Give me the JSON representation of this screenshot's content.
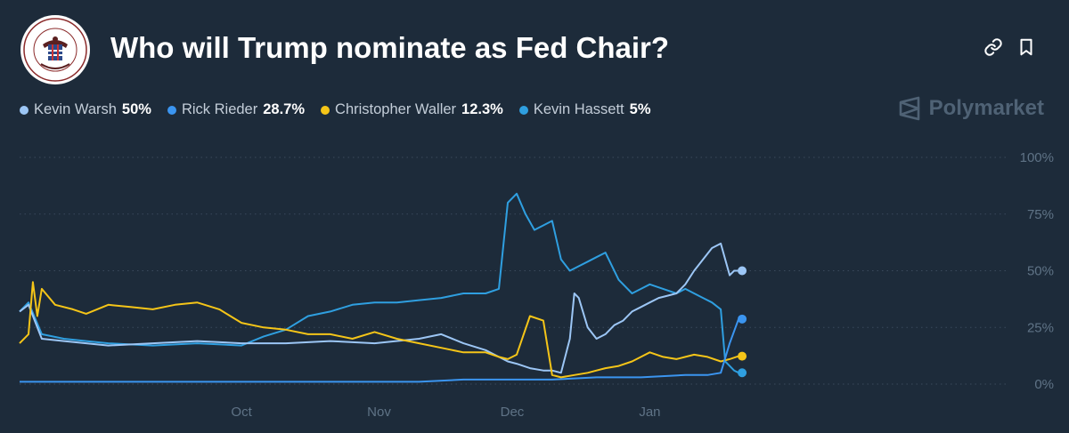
{
  "header": {
    "title": "Who will Trump nominate as Fed Chair?",
    "logo_icon": "federal-reserve-seal-icon",
    "link_icon": "link-icon",
    "bookmark_icon": "bookmark-icon"
  },
  "brand": {
    "name": "Polymarket",
    "icon": "polymarket-logo-icon"
  },
  "legend": [
    {
      "name": "Kevin Warsh",
      "value": "50%",
      "color": "#9cc6f5"
    },
    {
      "name": "Rick Rieder",
      "value": "28.7%",
      "color": "#3b95f0"
    },
    {
      "name": "Christopher Waller",
      "value": "12.3%",
      "color": "#f5c518"
    },
    {
      "name": "Kevin Hassett",
      "value": "5%",
      "color": "#2f9fe0"
    }
  ],
  "chart_data": {
    "type": "line",
    "x_ticks": [
      "Oct",
      "Nov",
      "Dec",
      "Jan"
    ],
    "y_ticks": [
      "0%",
      "25%",
      "50%",
      "75%",
      "100%"
    ],
    "ylim": [
      0,
      100
    ],
    "grid": true,
    "legend_position": "top-left",
    "x_range": [
      -50,
      170
    ],
    "x_tick_positions": [
      0,
      31,
      61,
      92
    ],
    "series": [
      {
        "name": "Kevin Warsh",
        "color": "#9cc6f5",
        "x": [
          -50,
          -48,
          -45,
          -40,
          -35,
          -30,
          -20,
          -10,
          0,
          10,
          20,
          30,
          40,
          45,
          50,
          55,
          58,
          60,
          62,
          65,
          68,
          70,
          72,
          74,
          75,
          76,
          78,
          80,
          82,
          84,
          86,
          88,
          90,
          92,
          94,
          96,
          98,
          100,
          102,
          104,
          106,
          108,
          109,
          110,
          111,
          112
        ],
        "values": [
          32,
          35,
          20,
          19,
          18,
          17,
          18,
          19,
          18,
          18,
          19,
          18,
          20,
          22,
          18,
          15,
          12,
          10,
          9,
          7,
          6,
          6,
          5,
          20,
          40,
          38,
          25,
          20,
          22,
          26,
          28,
          32,
          34,
          36,
          38,
          39,
          40,
          44,
          50,
          55,
          60,
          62,
          55,
          48,
          50,
          50
        ]
      },
      {
        "name": "Rick Rieder",
        "color": "#3b95f0",
        "x": [
          -50,
          -40,
          -30,
          -20,
          -10,
          0,
          5,
          10,
          15,
          20,
          30,
          40,
          50,
          60,
          70,
          80,
          90,
          100,
          105,
          108,
          110,
          112
        ],
        "values": [
          1,
          1,
          1,
          1,
          1,
          1,
          1,
          1,
          1,
          1,
          1,
          1,
          2,
          2,
          2,
          3,
          3,
          4,
          4,
          5,
          18,
          28.7
        ]
      },
      {
        "name": "Christopher Waller",
        "color": "#f5c518",
        "x": [
          -50,
          -48,
          -47,
          -46,
          -45,
          -42,
          -38,
          -35,
          -30,
          -25,
          -20,
          -15,
          -10,
          -5,
          0,
          5,
          10,
          15,
          20,
          25,
          30,
          35,
          40,
          45,
          50,
          55,
          58,
          60,
          62,
          65,
          68,
          70,
          72,
          75,
          78,
          80,
          82,
          85,
          88,
          90,
          92,
          95,
          98,
          100,
          102,
          105,
          108,
          110,
          112
        ],
        "values": [
          18,
          22,
          45,
          30,
          42,
          35,
          33,
          31,
          35,
          34,
          33,
          35,
          36,
          33,
          27,
          25,
          24,
          22,
          22,
          20,
          23,
          20,
          18,
          16,
          14,
          14,
          12,
          11,
          13,
          30,
          28,
          4,
          3,
          4,
          5,
          6,
          7,
          8,
          10,
          12,
          14,
          12,
          11,
          12,
          13,
          12,
          10,
          11,
          12.3
        ]
      },
      {
        "name": "Kevin Hassett",
        "color": "#2f9fe0",
        "x": [
          -50,
          -48,
          -45,
          -40,
          -35,
          -30,
          -20,
          -10,
          0,
          5,
          10,
          15,
          20,
          25,
          30,
          35,
          40,
          45,
          50,
          55,
          58,
          60,
          62,
          64,
          66,
          68,
          70,
          72,
          74,
          76,
          78,
          80,
          82,
          85,
          88,
          90,
          92,
          95,
          98,
          100,
          102,
          104,
          106,
          108,
          109,
          110,
          111,
          112
        ],
        "values": [
          32,
          36,
          22,
          20,
          19,
          18,
          17,
          18,
          17,
          21,
          24,
          30,
          32,
          35,
          36,
          36,
          37,
          38,
          40,
          40,
          42,
          80,
          84,
          75,
          68,
          70,
          72,
          55,
          50,
          52,
          54,
          56,
          58,
          46,
          40,
          42,
          44,
          42,
          40,
          42,
          40,
          38,
          36,
          33,
          10,
          8,
          6,
          5
        ]
      }
    ]
  }
}
